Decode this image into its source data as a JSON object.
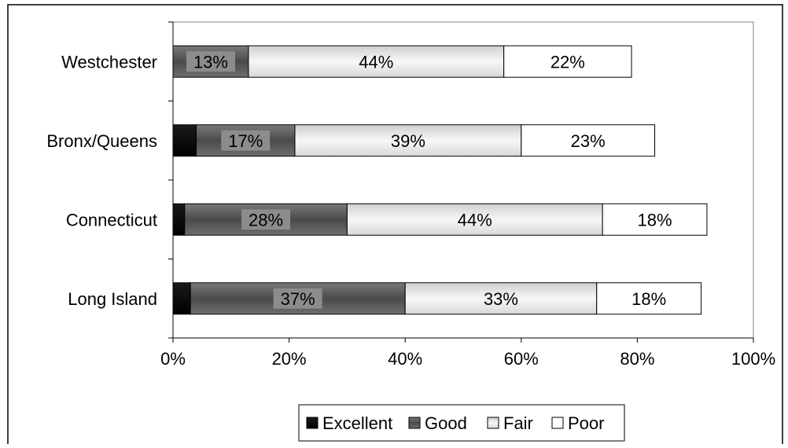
{
  "chart_data": {
    "type": "bar",
    "orientation": "horizontal",
    "stacked": true,
    "categories": [
      "Westchester",
      "Bronx/Queens",
      "Connecticut",
      "Long Island"
    ],
    "series": [
      {
        "name": "Excellent",
        "values": [
          0,
          4,
          2,
          3
        ],
        "labels": [
          "",
          "",
          "",
          ""
        ],
        "color": "#000000"
      },
      {
        "name": "Good",
        "values": [
          13,
          17,
          28,
          37
        ],
        "labels": [
          "13%",
          "17%",
          "28%",
          "37%"
        ],
        "color": "#5a5a5a"
      },
      {
        "name": "Fair",
        "values": [
          44,
          39,
          44,
          33
        ],
        "labels": [
          "44%",
          "39%",
          "44%",
          "33%"
        ],
        "color": "#e6e6e6"
      },
      {
        "name": "Poor",
        "values": [
          22,
          23,
          18,
          18
        ],
        "labels": [
          "22%",
          "23%",
          "18%",
          "18%"
        ],
        "color": "#ffffff"
      }
    ],
    "xlim": [
      0,
      100
    ],
    "x_ticks": [
      "0%",
      "20%",
      "40%",
      "60%",
      "80%",
      "100%"
    ],
    "grid": false,
    "legend_position": "bottom"
  }
}
